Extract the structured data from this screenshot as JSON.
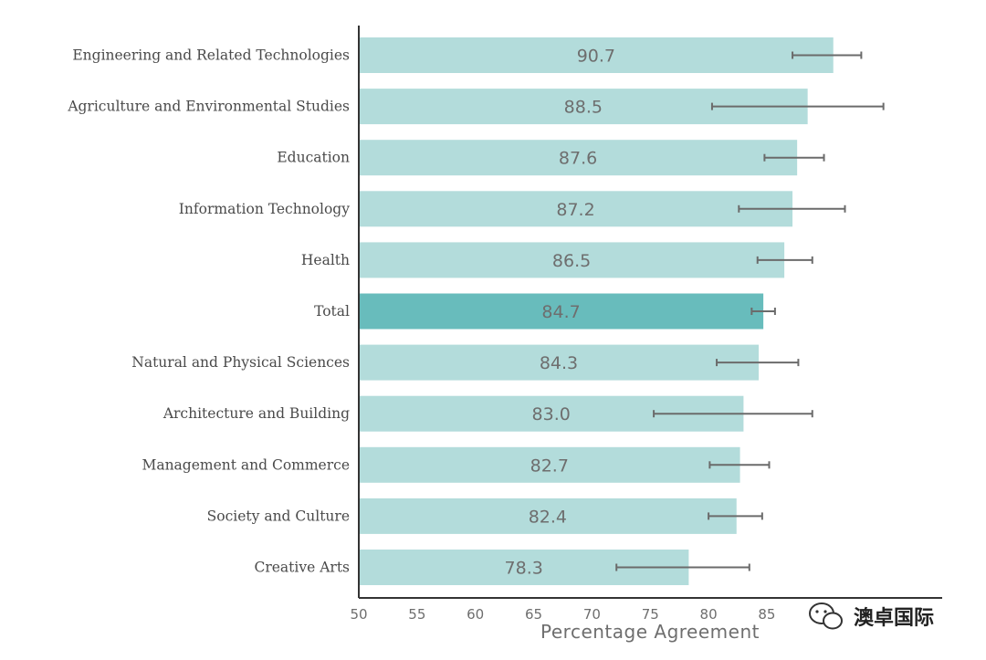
{
  "chart_data": {
    "type": "bar",
    "orientation": "horizontal",
    "xlabel": "Percentage Agreement",
    "xlim": [
      50,
      100
    ],
    "xticks": [
      50,
      55,
      60,
      65,
      70,
      75,
      80,
      85
    ],
    "categories": [
      "Engineering and Related Technologies",
      "Agriculture and Environmental Studies",
      "Education",
      "Information Technology",
      "Health",
      "Total",
      "Natural and Physical Sciences",
      "Architecture and Building",
      "Management and Commerce",
      "Society and Culture",
      "Creative Arts"
    ],
    "values": [
      90.7,
      88.5,
      87.6,
      87.2,
      86.5,
      84.7,
      84.3,
      83.0,
      82.7,
      82.4,
      78.3
    ],
    "value_labels": [
      "90.7",
      "88.5",
      "87.6",
      "87.2",
      "86.5",
      "84.7",
      "84.3",
      "83.0",
      "82.7",
      "82.4",
      "78.3"
    ],
    "error_low": [
      87.2,
      80.3,
      84.8,
      82.6,
      84.2,
      83.7,
      80.7,
      75.3,
      80.1,
      80.0,
      72.1
    ],
    "error_high": [
      93.1,
      95.0,
      89.9,
      91.7,
      88.9,
      85.7,
      87.7,
      88.9,
      85.2,
      84.6,
      83.5
    ],
    "highlight_category": "Total",
    "colors": {
      "bar": "#b3dcdb",
      "highlight_bar": "#68bcbc",
      "error_bar": "#6b6b6b",
      "axis": "#333333"
    }
  },
  "watermark": {
    "text": "澳卓国际",
    "icon": "wechat-icon"
  }
}
